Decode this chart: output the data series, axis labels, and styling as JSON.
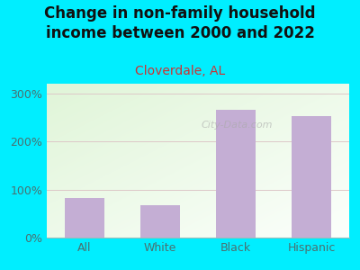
{
  "title": "Change in non-family household\nincome between 2000 and 2022",
  "subtitle": "Cloverdale, AL",
  "categories": [
    "All",
    "White",
    "Black",
    "Hispanic"
  ],
  "values": [
    82,
    68,
    265,
    252
  ],
  "bar_color": "#c4aed4",
  "title_fontsize": 12,
  "subtitle_fontsize": 10,
  "subtitle_color": "#cc3333",
  "title_color": "#111111",
  "tick_color": "#4a7070",
  "background_color": "#00eeff",
  "plot_bg_topleft": [
    0.878,
    0.961,
    0.847
  ],
  "plot_bg_bottomright": [
    0.988,
    1.0,
    0.988
  ],
  "ylim": [
    0,
    320
  ],
  "yticks": [
    0,
    100,
    200,
    300
  ],
  "ytick_labels": [
    "0%",
    "100%",
    "200%",
    "300%"
  ],
  "watermark": "City-Data.com",
  "grid_color": "#ddc8c8",
  "grid_linewidth": 0.7
}
